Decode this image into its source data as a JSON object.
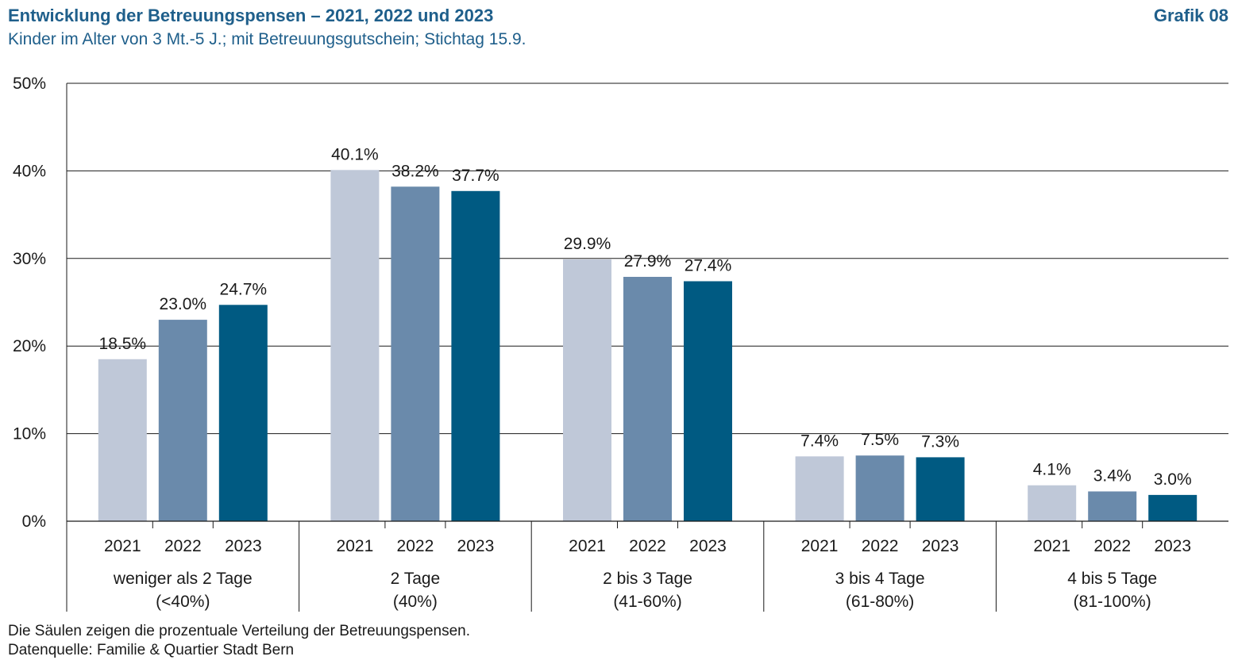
{
  "header": {
    "title": "Entwicklung der Betreuungspensen – 2021, 2022 und 2023",
    "subtitle": "Kinder im Alter von 3 Mt.-5 J.; mit Betreuungsgutschein; Stichtag 15.9.",
    "figure_label": "Grafik 08"
  },
  "footer": {
    "note": "Die Säulen zeigen die prozentuale Verteilung der Betreuungspensen.",
    "source": "Datenquelle: Familie & Quartier Stadt Bern"
  },
  "colors": {
    "2021": "#bfc8d8",
    "2022": "#6a8aab",
    "2023": "#005a82"
  },
  "chart_data": {
    "type": "bar",
    "title": "Entwicklung der Betreuungspensen – 2021, 2022 und 2023",
    "xlabel": "",
    "ylabel": "",
    "ylim": [
      0,
      50
    ],
    "yticks": [
      "0%",
      "10%",
      "20%",
      "30%",
      "40%",
      "50%"
    ],
    "grid": true,
    "legend": "none",
    "categories": [
      {
        "label1": "weniger als 2 Tage",
        "label2": "(<40%)"
      },
      {
        "label1": "2 Tage",
        "label2": "(40%)"
      },
      {
        "label1": "2 bis 3 Tage",
        "label2": "(41-60%)"
      },
      {
        "label1": "3 bis 4 Tage",
        "label2": "(61-80%)"
      },
      {
        "label1": "4 bis 5 Tage",
        "label2": "(81-100%)"
      }
    ],
    "series": [
      {
        "name": "2021",
        "values": [
          18.5,
          40.1,
          29.9,
          7.4,
          4.1
        ],
        "labels": [
          "18.5%",
          "40.1%",
          "29.9%",
          "7.4%",
          "4.1%"
        ]
      },
      {
        "name": "2022",
        "values": [
          23.0,
          38.2,
          27.9,
          7.5,
          3.4
        ],
        "labels": [
          "23.0%",
          "38.2%",
          "27.9%",
          "7.5%",
          "3.4%"
        ]
      },
      {
        "name": "2023",
        "values": [
          24.7,
          37.7,
          27.4,
          7.3,
          3.0
        ],
        "labels": [
          "24.7%",
          "37.7%",
          "27.4%",
          "7.3%",
          "3.0%"
        ]
      }
    ]
  }
}
